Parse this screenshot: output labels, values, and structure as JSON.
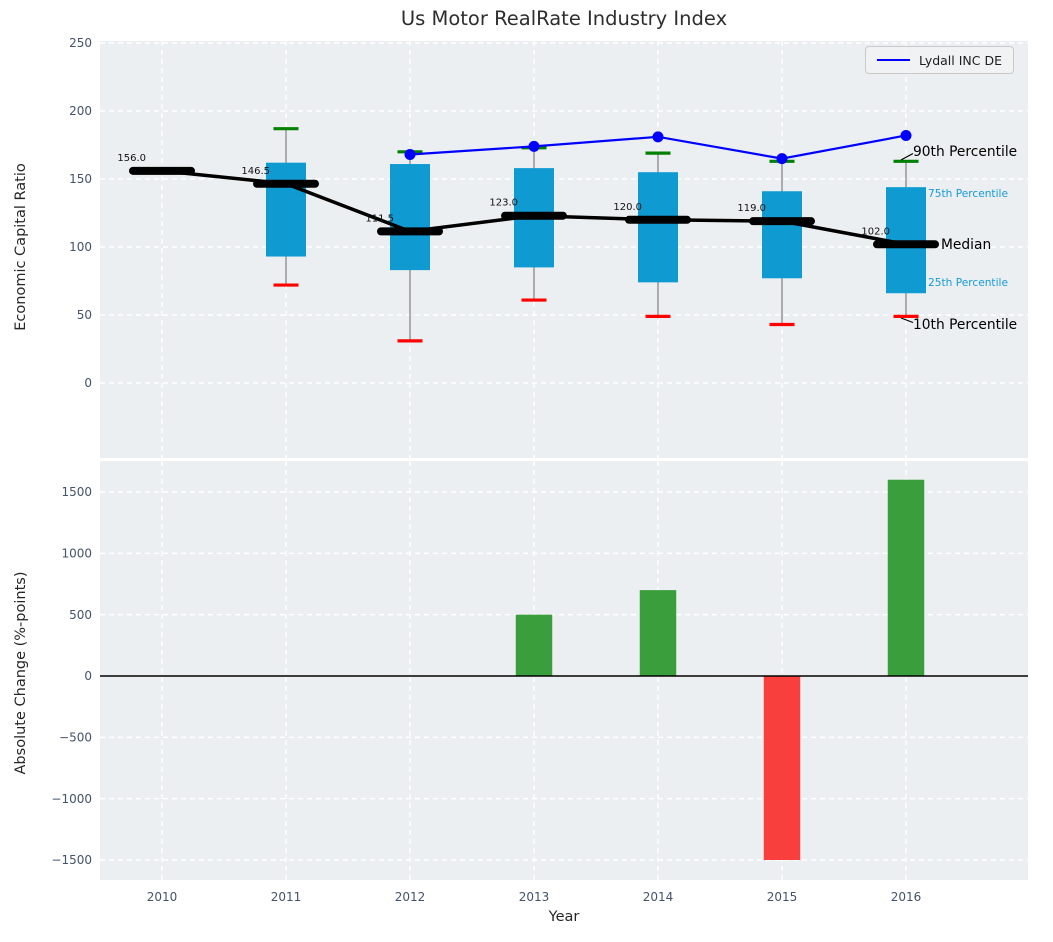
{
  "figure": {
    "background": "#ffffff",
    "axes_background": "#eceff1",
    "tick_color": "#44536b"
  },
  "chart_data": [
    {
      "type": "boxplot",
      "title": "Us Motor RealRate Industry Index",
      "ylabel": "Economic Capital Ratio",
      "x": [
        2010,
        2011,
        2012,
        2013,
        2014,
        2015,
        2016
      ],
      "median": [
        156.0,
        146.5,
        111.5,
        123.0,
        120.0,
        119.0,
        102.0
      ],
      "median_labels": [
        "156.0",
        "146.5",
        "111.5",
        "123.0",
        "120.0",
        "119.0",
        "102.0"
      ],
      "p90": [
        null,
        187,
        170,
        173,
        169,
        163,
        163
      ],
      "p75": [
        null,
        162,
        161,
        158,
        155,
        141,
        144
      ],
      "p25": [
        null,
        93,
        83,
        85,
        74,
        77,
        66
      ],
      "p10": [
        null,
        72,
        31,
        61,
        49,
        43,
        49
      ],
      "series": [
        {
          "name": "Lydall INC DE",
          "x": [
            2012,
            2013,
            2014,
            2015,
            2016
          ],
          "values": [
            168,
            174,
            181,
            165,
            182
          ],
          "color": "#0000ff"
        }
      ],
      "percentile_labels": {
        "p90": "90th Percentile",
        "p75": "75th Percentile",
        "median": "Median",
        "p25": "25th Percentile",
        "p10": "10th Percentile"
      },
      "yticks": [
        250,
        200,
        150,
        100,
        50,
        0
      ],
      "ylim": [
        -53,
        251
      ],
      "grid": true,
      "legend_position": "upper right",
      "colors": {
        "box_fill": "#0f9bd2",
        "cap_high": "#008000",
        "cap_low": "#ff0000",
        "whisker": "#7d7d7d",
        "median_line": "#000000",
        "percentile_text": "#169bd5"
      }
    },
    {
      "type": "bar",
      "ylabel": "Absolute Change (%-points)",
      "xlabel": "Year",
      "categories": [
        2010,
        2011,
        2012,
        2013,
        2014,
        2015,
        2016
      ],
      "values": [
        0,
        0,
        0,
        500,
        700,
        -1500,
        1600
      ],
      "yticks": [
        1500,
        1000,
        500,
        0,
        -500,
        -1000,
        -1500
      ],
      "ylim": [
        -1663,
        1753
      ],
      "grid": true,
      "colors": {
        "positive": "#3a9e3c",
        "negative": "#f93e3e",
        "zero_line": "#000000"
      }
    }
  ]
}
